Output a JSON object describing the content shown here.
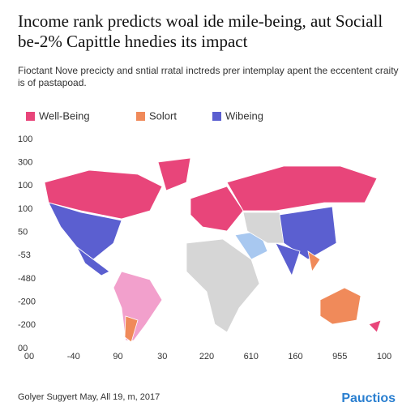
{
  "title": "Income rank predicts woal ide mile-being, aut Sociall be-2% Capittle hnedies its impact",
  "subtitle": "Fioctant Nove precicty and sntial rratal inctreds prer intemplay apent the eccentent craity is of pastapoad.",
  "legend": [
    {
      "label": "Well-Being",
      "color": "#e8457a"
    },
    {
      "label": "Solort",
      "color": "#f08a5a"
    },
    {
      "label": "Wibeing",
      "color": "#5b5fd0"
    }
  ],
  "y_axis_labels": [
    "100",
    "300",
    "100",
    "100",
    "50",
    "-53",
    "-480",
    "-200",
    "-200",
    "00"
  ],
  "x_axis_labels": [
    "00",
    "-40",
    "90",
    "30",
    "220",
    "610",
    "160",
    "955",
    "100"
  ],
  "footer": "Golyer Sugyert May, All 19, m, 2017",
  "brand": "Pauctios"
}
